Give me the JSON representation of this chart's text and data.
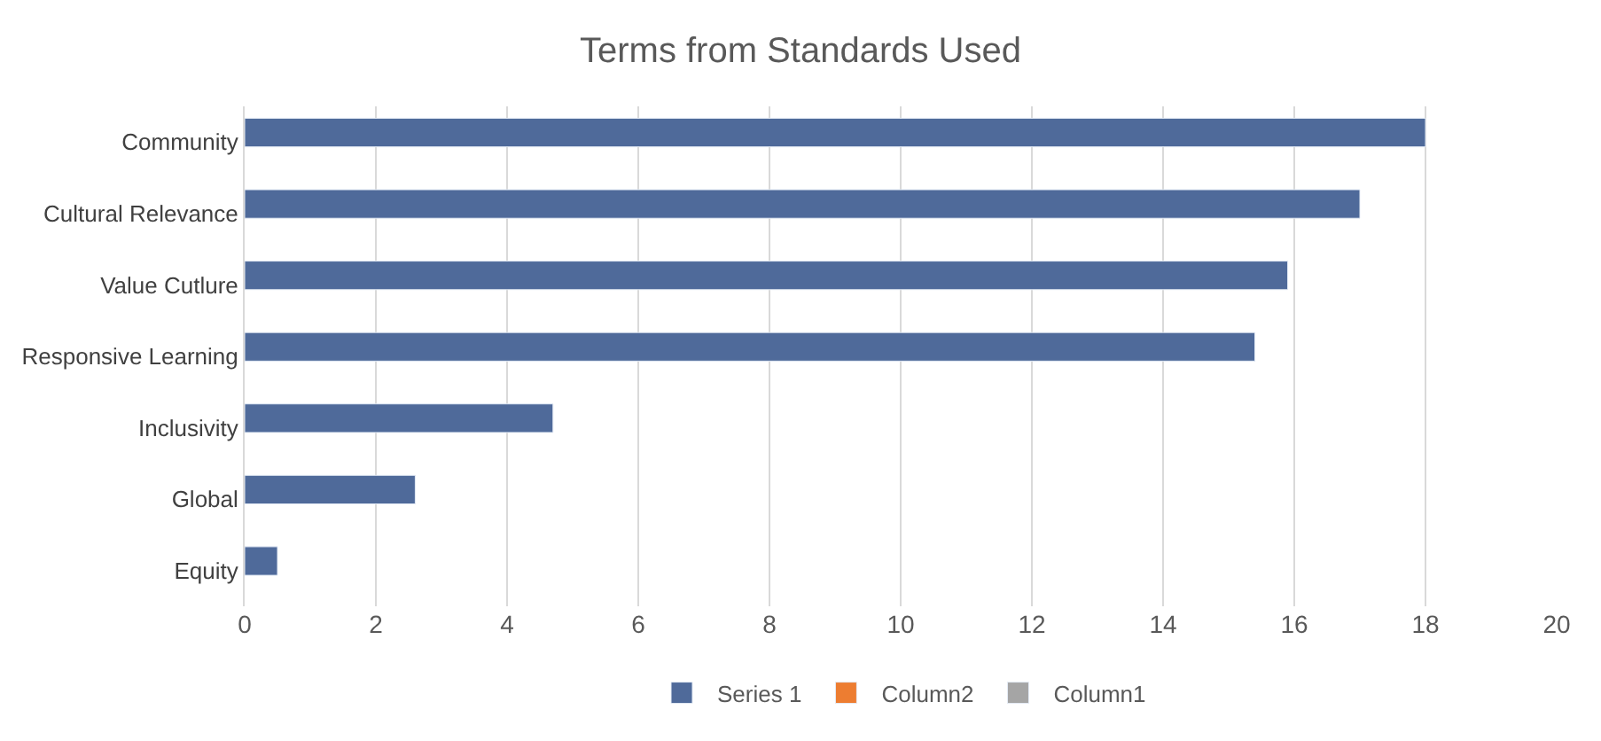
{
  "chart_data": {
    "type": "bar",
    "orientation": "horizontal",
    "title": "Terms from Standards Used",
    "categories": [
      "Community",
      "Cultural Relevance",
      "Value Cutlure",
      "Responsive Learning",
      "Inclusivity",
      "Global",
      "Equity"
    ],
    "series": [
      {
        "name": "Series 1",
        "color": "#4f6a9a",
        "values": [
          18,
          17,
          15.9,
          15.4,
          4.7,
          2.6,
          0.5
        ]
      },
      {
        "name": "Column2",
        "color": "#ed7d31",
        "values": [
          null,
          null,
          null,
          null,
          null,
          null,
          null
        ]
      },
      {
        "name": "Column1",
        "color": "#a5a5a5",
        "values": [
          null,
          null,
          null,
          null,
          null,
          null,
          null
        ]
      }
    ],
    "xlim": [
      0,
      20
    ],
    "xticks": [
      0,
      2,
      4,
      6,
      8,
      10,
      12,
      14,
      16,
      18,
      20
    ],
    "grid": "x",
    "legend": "bottom"
  }
}
